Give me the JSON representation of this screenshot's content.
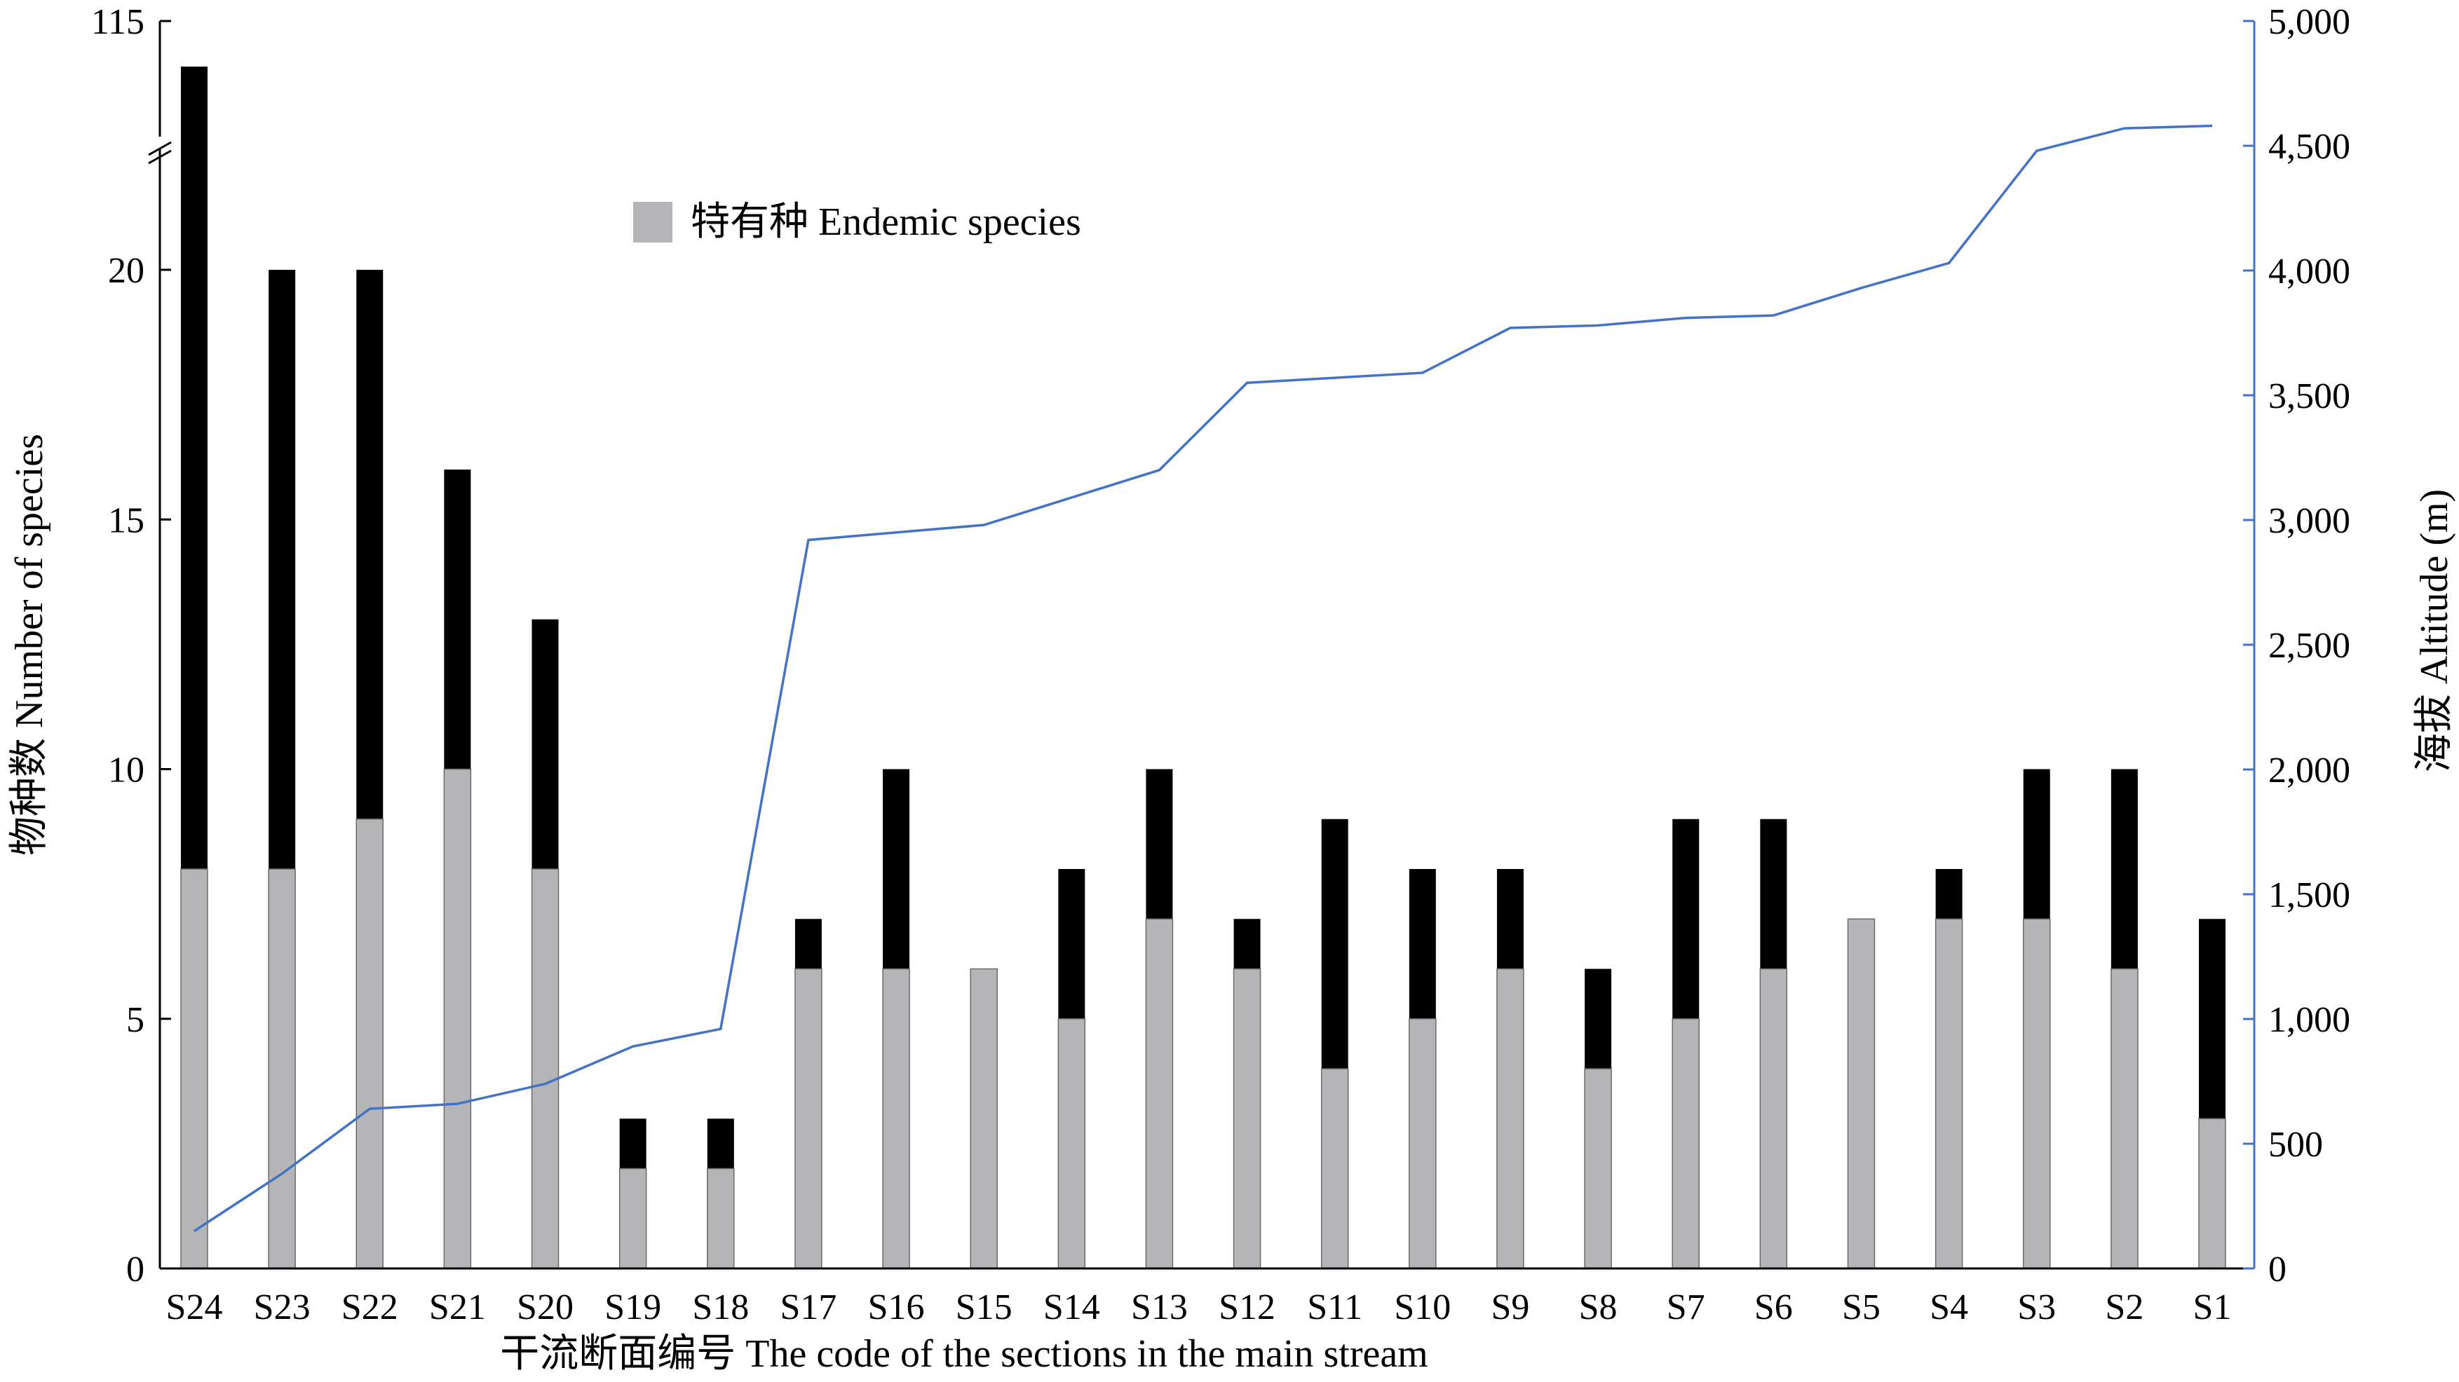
{
  "chart_data": {
    "type": "bar",
    "bar_mode": "stacked",
    "categories": [
      "S24",
      "S23",
      "S22",
      "S21",
      "S20",
      "S19",
      "S18",
      "S17",
      "S16",
      "S15",
      "S14",
      "S13",
      "S12",
      "S11",
      "S10",
      "S9",
      "S8",
      "S7",
      "S6",
      "S5",
      "S4",
      "S3",
      "S2",
      "S1"
    ],
    "series": [
      {
        "name": "特有种 Endemic species",
        "color": "#b5b5b7",
        "role": "endemic",
        "values": [
          8,
          8,
          9,
          10,
          8,
          2,
          2,
          6,
          6,
          6,
          5,
          7,
          6,
          4,
          5,
          6,
          4,
          5,
          6,
          7,
          7,
          7,
          6,
          3
        ]
      },
      {
        "color": "#000000",
        "role": "total",
        "values": [
          115,
          20,
          20,
          16,
          13,
          3,
          3,
          7,
          10,
          6,
          8,
          10,
          7,
          9,
          8,
          8,
          6,
          9,
          9,
          7,
          8,
          10,
          10,
          7
        ]
      }
    ],
    "altitude": {
      "axis": "right",
      "color": "#4472c4",
      "values": [
        150,
        380,
        640,
        660,
        740,
        890,
        960,
        2920,
        2950,
        2980,
        3090,
        3200,
        3550,
        3570,
        3590,
        3770,
        3780,
        3810,
        3820,
        3930,
        4030,
        4480,
        4570,
        4580
      ]
    },
    "ylabel": "物种数  Number of  species",
    "ylabel_right": "海拔 Altitude (m)",
    "xlabel": "干流断面编号 The code of the sections in the main stream",
    "ylim": [
      0,
      25
    ],
    "y_axis_break": {
      "after_value": 23,
      "top_label": "115"
    },
    "y_ticks": [
      "0",
      "5",
      "10",
      "15",
      "20"
    ],
    "y_tick_values": [
      0,
      5,
      10,
      15,
      20
    ],
    "y2lim": [
      0,
      5000
    ],
    "y2_ticks": [
      "0",
      "500",
      "1,000",
      "1,500",
      "2,000",
      "2,500",
      "3,000",
      "3,500",
      "4,000",
      "4,500",
      "5,000"
    ],
    "y2_tick_values": [
      0,
      500,
      1000,
      1500,
      2000,
      2500,
      3000,
      3500,
      4000,
      4500,
      5000
    ],
    "legend": {
      "label": "特有种 Endemic species",
      "color": "#b5b5b7",
      "position": "upper-left-center"
    },
    "grid": false
  }
}
